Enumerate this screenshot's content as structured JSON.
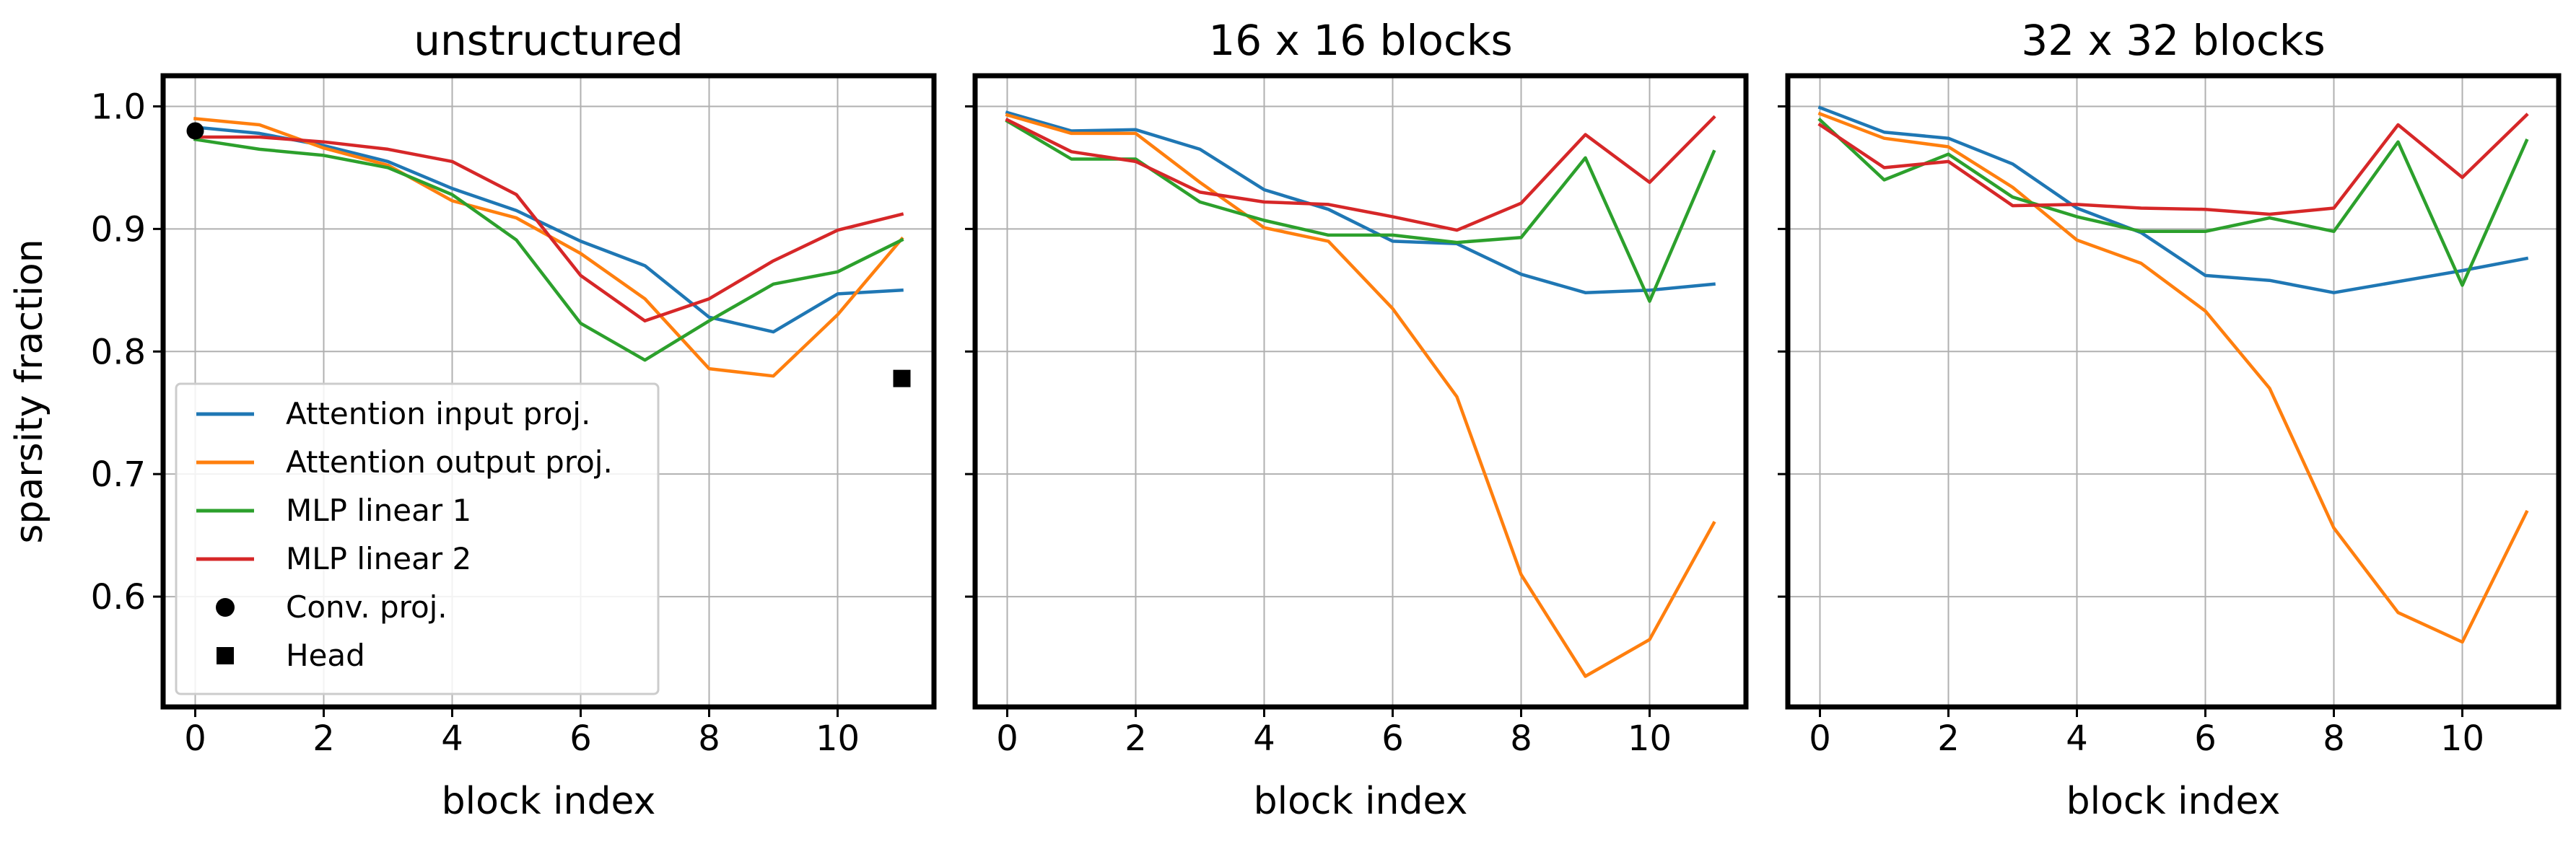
{
  "colors": {
    "attention_input": "#1f77b4",
    "attention_output": "#ff7f0e",
    "mlp1": "#2ca02c",
    "mlp2": "#d62728",
    "grid": "#b0b0b0",
    "frame": "#000000"
  },
  "chart_data": [
    {
      "type": "line",
      "title": "unstructured",
      "xlabel": "block index",
      "ylabel": "sparsity fraction",
      "xlim": [
        -0.5,
        11.5
      ],
      "ylim": [
        0.51,
        1.025
      ],
      "xticks": [
        0,
        2,
        4,
        6,
        8,
        10
      ],
      "yticks": [
        0.6,
        0.7,
        0.8,
        0.9,
        1.0
      ],
      "ytick_labels": [
        "0.6",
        "0.7",
        "0.8",
        "0.9",
        "1.0"
      ],
      "grid": true,
      "legend_position": "lower-left",
      "x": [
        0,
        1,
        2,
        3,
        4,
        5,
        6,
        7,
        8,
        9,
        10,
        11
      ],
      "series": [
        {
          "name": "Attention input proj.",
          "color": "#1f77b4",
          "values": [
            0.983,
            0.978,
            0.968,
            0.955,
            0.933,
            0.915,
            0.89,
            0.87,
            0.828,
            0.816,
            0.847,
            0.85
          ]
        },
        {
          "name": "Attention output proj.",
          "color": "#ff7f0e",
          "values": [
            0.99,
            0.985,
            0.966,
            0.952,
            0.923,
            0.909,
            0.88,
            0.843,
            0.786,
            0.78,
            0.83,
            0.892
          ]
        },
        {
          "name": "MLP linear 1",
          "color": "#2ca02c",
          "values": [
            0.973,
            0.965,
            0.96,
            0.95,
            0.928,
            0.891,
            0.823,
            0.793,
            0.825,
            0.855,
            0.865,
            0.891
          ]
        },
        {
          "name": "MLP linear 2",
          "color": "#d62728",
          "values": [
            0.975,
            0.975,
            0.971,
            0.965,
            0.955,
            0.928,
            0.862,
            0.825,
            0.843,
            0.874,
            0.899,
            0.912
          ]
        }
      ],
      "markers": [
        {
          "name": "Conv. proj.",
          "shape": "circle",
          "x": 0,
          "y": 0.98
        },
        {
          "name": "Head",
          "shape": "square",
          "x": 11,
          "y": 0.778
        }
      ]
    },
    {
      "type": "line",
      "title": "16 x 16 blocks",
      "xlabel": "block index",
      "xlim": [
        -0.5,
        11.5
      ],
      "ylim": [
        0.51,
        1.025
      ],
      "xticks": [
        0,
        2,
        4,
        6,
        8,
        10
      ],
      "yticks": [
        0.6,
        0.7,
        0.8,
        0.9,
        1.0
      ],
      "grid": true,
      "x": [
        0,
        1,
        2,
        3,
        4,
        5,
        6,
        7,
        8,
        9,
        10,
        11
      ],
      "series": [
        {
          "name": "Attention input proj.",
          "color": "#1f77b4",
          "values": [
            0.995,
            0.98,
            0.981,
            0.965,
            0.932,
            0.916,
            0.89,
            0.888,
            0.863,
            0.848,
            0.85,
            0.855
          ]
        },
        {
          "name": "Attention output proj.",
          "color": "#ff7f0e",
          "values": [
            0.993,
            0.978,
            0.978,
            0.938,
            0.901,
            0.89,
            0.835,
            0.763,
            0.618,
            0.535,
            0.565,
            0.66
          ]
        },
        {
          "name": "MLP linear 1",
          "color": "#2ca02c",
          "values": [
            0.988,
            0.957,
            0.957,
            0.922,
            0.907,
            0.895,
            0.895,
            0.889,
            0.893,
            0.958,
            0.841,
            0.963
          ]
        },
        {
          "name": "MLP linear 2",
          "color": "#d62728",
          "values": [
            0.989,
            0.963,
            0.955,
            0.93,
            0.922,
            0.92,
            0.91,
            0.899,
            0.921,
            0.977,
            0.938,
            0.991
          ]
        }
      ]
    },
    {
      "type": "line",
      "title": "32 x 32 blocks",
      "xlabel": "block index",
      "xlim": [
        -0.5,
        11.5
      ],
      "ylim": [
        0.51,
        1.025
      ],
      "xticks": [
        0,
        2,
        4,
        6,
        8,
        10
      ],
      "yticks": [
        0.6,
        0.7,
        0.8,
        0.9,
        1.0
      ],
      "grid": true,
      "x": [
        0,
        1,
        2,
        3,
        4,
        5,
        6,
        7,
        8,
        9,
        10,
        11
      ],
      "series": [
        {
          "name": "Attention input proj.",
          "color": "#1f77b4",
          "values": [
            0.999,
            0.979,
            0.974,
            0.953,
            0.917,
            0.897,
            0.862,
            0.858,
            0.848,
            0.857,
            0.866,
            0.876
          ]
        },
        {
          "name": "Attention output proj.",
          "color": "#ff7f0e",
          "values": [
            0.994,
            0.974,
            0.967,
            0.934,
            0.891,
            0.872,
            0.833,
            0.77,
            0.656,
            0.587,
            0.563,
            0.669
          ]
        },
        {
          "name": "MLP linear 1",
          "color": "#2ca02c",
          "values": [
            0.989,
            0.94,
            0.961,
            0.926,
            0.91,
            0.898,
            0.898,
            0.909,
            0.898,
            0.971,
            0.854,
            0.972
          ]
        },
        {
          "name": "MLP linear 2",
          "color": "#d62728",
          "values": [
            0.985,
            0.95,
            0.955,
            0.919,
            0.92,
            0.917,
            0.916,
            0.912,
            0.917,
            0.985,
            0.942,
            0.993
          ]
        }
      ]
    }
  ]
}
